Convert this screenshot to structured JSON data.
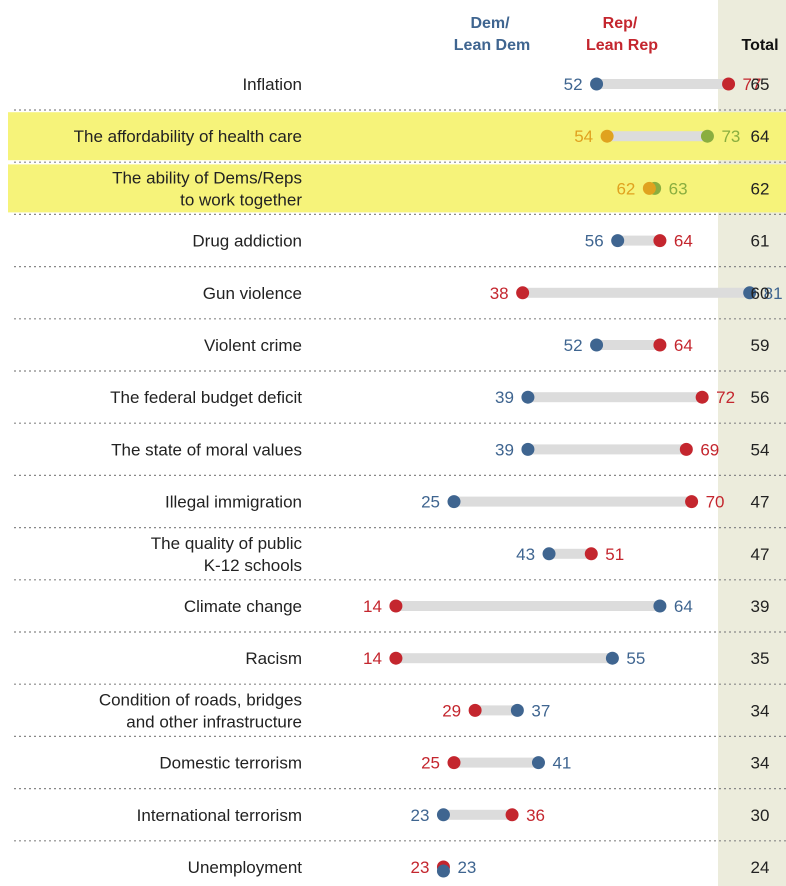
{
  "chart_data": {
    "type": "dot-plot",
    "headers": {
      "dem_line1": "Dem/",
      "dem_line2": "Lean Dem",
      "rep_line1": "Rep/",
      "rep_line2": "Lean Rep",
      "total": "Total"
    },
    "series": [
      {
        "name": "Dem/Lean Dem",
        "key": "dem"
      },
      {
        "name": "Rep/Lean Rep",
        "key": "rep"
      }
    ],
    "rows": [
      {
        "label": [
          "Inflation"
        ],
        "dem": 52,
        "rep": 77,
        "total": 65,
        "highlight": false
      },
      {
        "label": [
          "The affordability of health care"
        ],
        "dem": 54,
        "rep": 73,
        "total": 64,
        "highlight": true
      },
      {
        "label": [
          "The ability of Dems/Reps",
          "to work together"
        ],
        "dem": 62,
        "rep": 63,
        "total": 62,
        "highlight": true
      },
      {
        "label": [
          "Drug addiction"
        ],
        "dem": 56,
        "rep": 64,
        "total": 61,
        "highlight": false
      },
      {
        "label": [
          "Gun violence"
        ],
        "dem": 81,
        "rep": 38,
        "total": 60,
        "highlight": false
      },
      {
        "label": [
          "Violent crime"
        ],
        "dem": 52,
        "rep": 64,
        "total": 59,
        "highlight": false
      },
      {
        "label": [
          "The federal budget deficit"
        ],
        "dem": 39,
        "rep": 72,
        "total": 56,
        "highlight": false
      },
      {
        "label": [
          "The state of moral values"
        ],
        "dem": 39,
        "rep": 69,
        "total": 54,
        "highlight": false
      },
      {
        "label": [
          "Illegal immigration"
        ],
        "dem": 25,
        "rep": 70,
        "total": 47,
        "highlight": false
      },
      {
        "label": [
          "The quality of public",
          "K-12 schools"
        ],
        "dem": 43,
        "rep": 51,
        "total": 47,
        "highlight": false
      },
      {
        "label": [
          "Climate change"
        ],
        "dem": 64,
        "rep": 14,
        "total": 39,
        "highlight": false
      },
      {
        "label": [
          "Racism"
        ],
        "dem": 55,
        "rep": 14,
        "total": 35,
        "highlight": false
      },
      {
        "label": [
          "Condition of roads, bridges",
          "and other infrastructure"
        ],
        "dem": 37,
        "rep": 29,
        "total": 34,
        "highlight": false
      },
      {
        "label": [
          "Domestic terrorism"
        ],
        "dem": 41,
        "rep": 25,
        "total": 34,
        "highlight": false
      },
      {
        "label": [
          "International terrorism"
        ],
        "dem": 23,
        "rep": 36,
        "total": 30,
        "highlight": false
      },
      {
        "label": [
          "Unemployment"
        ],
        "dem": 23,
        "rep": 23,
        "total": 24,
        "highlight": false
      }
    ],
    "x_range": [
      0,
      100
    ],
    "colors": {
      "dem": "#3f6590",
      "rep": "#c4262e",
      "dem_highlight": "#e0a21f",
      "rep_highlight": "#8aae3f",
      "highlight_band": "#f6f37a",
      "range_bar": "#dcdcdc",
      "total_column": "#ececdc",
      "row_separator": "#888888"
    }
  }
}
